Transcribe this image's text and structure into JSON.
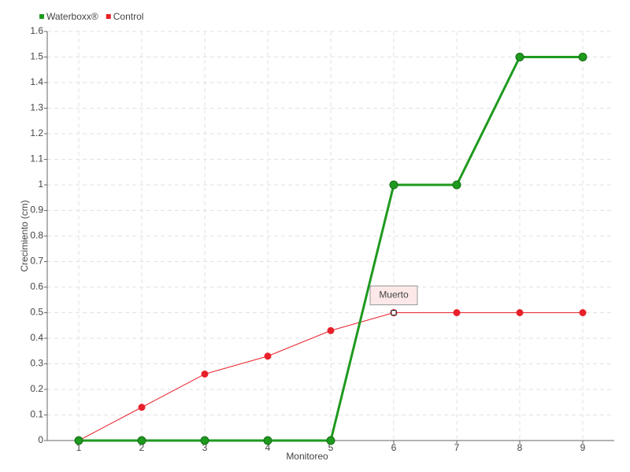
{
  "chart_data": {
    "type": "line",
    "x_label": "Monitoreo",
    "y_label": "Crecimiento (cm)",
    "categories": [
      "1",
      "2",
      "3",
      "4",
      "5",
      "6",
      "7",
      "8",
      "9"
    ],
    "series": [
      {
        "name": "Waterboxx®",
        "color": "#1e9a1e",
        "values": [
          0,
          0,
          0,
          0,
          0,
          1,
          1,
          1.5,
          1.5
        ]
      },
      {
        "name": "Control",
        "color": "#e8202a",
        "values": [
          0,
          0.13,
          0.26,
          0.33,
          0.43,
          0.5,
          0.5,
          0.5,
          0.5
        ]
      }
    ],
    "annotations": [
      {
        "label": "Muerto",
        "series": "Control",
        "category": "6"
      }
    ],
    "ylim": [
      0,
      1.6
    ],
    "yticks": [
      0,
      0.1,
      0.2,
      0.3,
      0.4,
      0.5,
      0.6,
      0.7,
      0.8,
      0.9,
      1,
      1.1,
      1.2,
      1.3,
      1.4,
      1.5,
      1.6
    ],
    "grid": true,
    "legend": "top-left"
  }
}
